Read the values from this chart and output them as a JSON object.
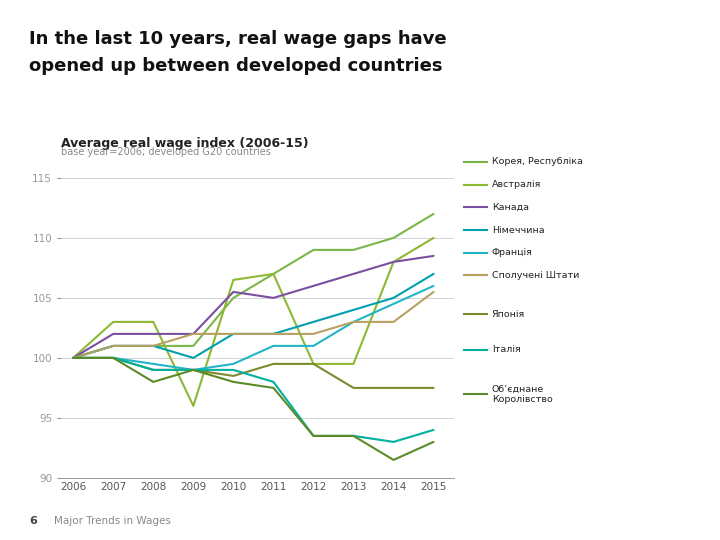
{
  "title_line1": "In the last 10 years, real wage gaps have",
  "title_line2": "opened up between developed countries",
  "chart_title": "Average real wage index (2006-15)",
  "chart_subtitle": "base year=2006; developed G20 countries",
  "years": [
    2006,
    2007,
    2008,
    2009,
    2010,
    2011,
    2012,
    2013,
    2014,
    2015
  ],
  "series": [
    {
      "name": "Корея, Республіка",
      "color": "#7ab648",
      "linewidth": 1.5,
      "values": [
        100,
        101,
        101,
        101,
        105,
        107,
        109,
        109,
        110,
        112
      ]
    },
    {
      "name": "Австралія",
      "color": "#8db832",
      "linewidth": 1.5,
      "values": [
        100,
        103,
        103,
        96,
        106.5,
        107,
        99.5,
        99.5,
        108,
        110
      ]
    },
    {
      "name": "Канада",
      "color": "#7b4fa0",
      "linewidth": 1.5,
      "values": [
        100,
        102,
        102,
        102,
        105.5,
        105,
        106,
        107,
        108,
        108.5
      ]
    },
    {
      "name": "Німеччина",
      "color": "#00a0b0",
      "linewidth": 1.5,
      "values": [
        100,
        101,
        101,
        100,
        102,
        102,
        103,
        104,
        105,
        107
      ]
    },
    {
      "name": "Франція",
      "color": "#22b5c8",
      "linewidth": 1.5,
      "values": [
        100,
        100,
        99.5,
        99,
        99.5,
        101,
        101,
        103,
        104.5,
        106
      ]
    },
    {
      "name": "Сполучені Штати",
      "color": "#b8a060",
      "linewidth": 1.5,
      "values": [
        100,
        101,
        101,
        102,
        102,
        102,
        102,
        103,
        103,
        105.5
      ]
    },
    {
      "name": "Японія",
      "color": "#7d8a2e",
      "linewidth": 1.5,
      "values": [
        100,
        100,
        99,
        99,
        98.5,
        99.5,
        99.5,
        97.5,
        97.5,
        97.5
      ]
    },
    {
      "name": "Італія",
      "color": "#00b0a0",
      "linewidth": 1.5,
      "values": [
        100,
        100,
        99,
        99,
        99,
        98,
        93.5,
        93.5,
        93,
        94
      ]
    },
    {
      "name": "Об’єднане\nКоролівство",
      "color": "#5b8a28",
      "linewidth": 1.5,
      "values": [
        100,
        100,
        98,
        99,
        98,
        97.5,
        93.5,
        93.5,
        91.5,
        93
      ]
    }
  ],
  "xlim": [
    2005.7,
    2015.5
  ],
  "ylim": [
    90,
    117
  ],
  "yticks": [
    90,
    95,
    100,
    105,
    110,
    115
  ],
  "xticks": [
    2006,
    2007,
    2008,
    2009,
    2010,
    2011,
    2012,
    2013,
    2014,
    2015
  ],
  "background_color": "#ffffff",
  "slide_bg": "#f0f0f0",
  "footer_text": "Major Trends in Wages",
  "footer_number": "6"
}
